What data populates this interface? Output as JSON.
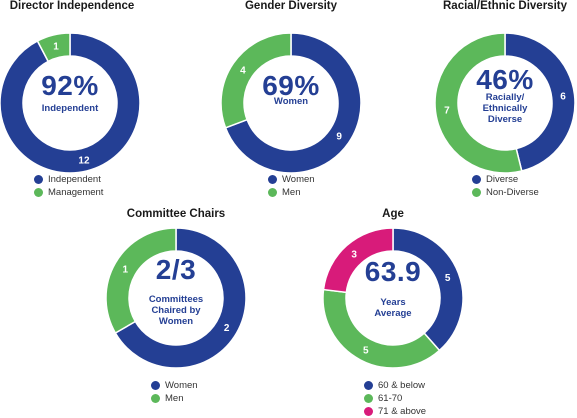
{
  "colors": {
    "blue": "#243f94",
    "green": "#5cb85a",
    "magenta": "#d81b7a",
    "text_blue": "#243f94"
  },
  "chart_data": [
    {
      "type": "pie",
      "title": "Director Independence",
      "center_value": "92%",
      "center_label": [
        "Independent"
      ],
      "categories": [
        "Independent",
        "Management"
      ],
      "values": [
        12,
        1
      ],
      "colors": [
        "#243f94",
        "#5cb85a"
      ],
      "legend": [
        "Independent",
        "Management"
      ]
    },
    {
      "type": "pie",
      "title": "Gender Diversity",
      "center_value": "69%",
      "center_label": [
        "Women"
      ],
      "categories": [
        "Women",
        "Men"
      ],
      "values": [
        9,
        4
      ],
      "colors": [
        "#243f94",
        "#5cb85a"
      ],
      "legend": [
        "Women",
        "Men"
      ]
    },
    {
      "type": "pie",
      "title": "Racial/Ethnic Diversity",
      "center_value": "46%",
      "center_label": [
        "Racially/",
        "Ethnically",
        "Diverse"
      ],
      "categories": [
        "Diverse",
        "Non-Diverse"
      ],
      "values": [
        6,
        7
      ],
      "colors": [
        "#243f94",
        "#5cb85a"
      ],
      "legend": [
        "Diverse",
        "Non-Diverse"
      ]
    },
    {
      "type": "pie",
      "title": "Committee Chairs",
      "center_value": "2/3",
      "center_label": [
        "Committees",
        "Chaired by",
        "Women"
      ],
      "categories": [
        "Women",
        "Men"
      ],
      "values": [
        2,
        1
      ],
      "colors": [
        "#243f94",
        "#5cb85a"
      ],
      "legend": [
        "Women",
        "Men"
      ]
    },
    {
      "type": "pie",
      "title": "Age",
      "center_value": "63.9",
      "center_label": [
        "Years",
        "Average"
      ],
      "categories": [
        "60 & below",
        "61-70",
        "71 & above"
      ],
      "values": [
        5,
        5,
        3
      ],
      "colors": [
        "#243f94",
        "#5cb85a",
        "#d81b7a"
      ],
      "legend": [
        "60 & below",
        "61-70",
        "71 & above"
      ]
    }
  ]
}
